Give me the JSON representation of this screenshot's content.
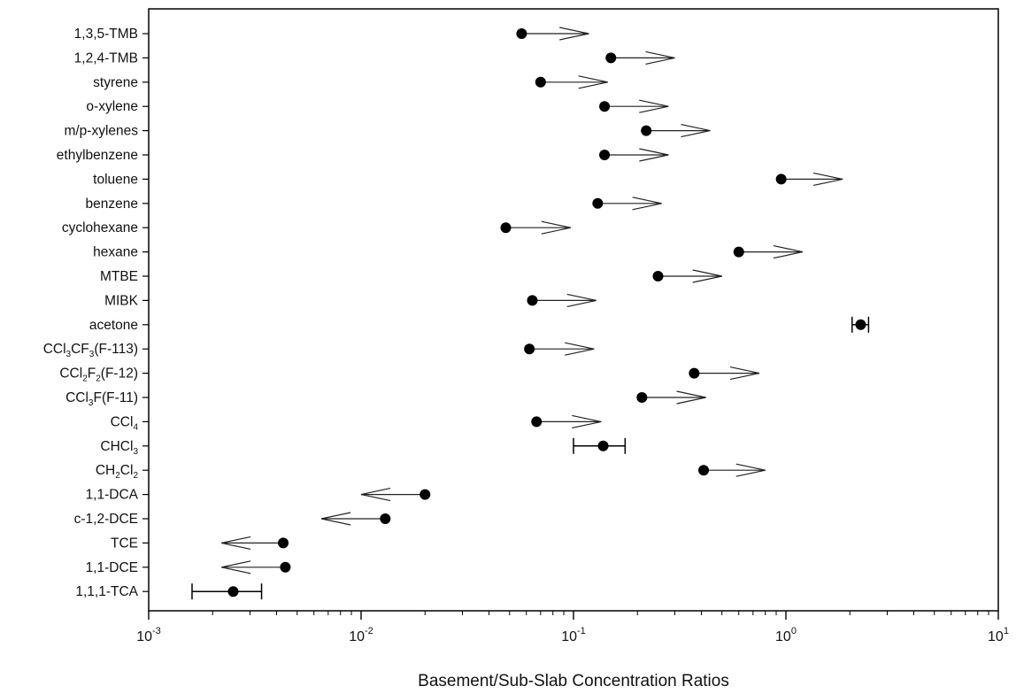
{
  "chart_data": {
    "type": "scatter",
    "title": "",
    "xlabel": "Basement/Sub-Slab Concentration Ratios",
    "ylabel": "",
    "x_scale": "log",
    "xlim": [
      0.001,
      10
    ],
    "grid": false,
    "legend": "none",
    "x_ticks": [
      {
        "value": 0.001,
        "base": "10",
        "exp": "-3"
      },
      {
        "value": 0.01,
        "base": "10",
        "exp": "-2"
      },
      {
        "value": 0.1,
        "base": "10",
        "exp": "-1"
      },
      {
        "value": 1,
        "base": "10",
        "exp": "0"
      },
      {
        "value": 10,
        "base": "10",
        "exp": "1"
      }
    ],
    "rows": [
      {
        "label": [
          {
            "t": "1,3,5-TMB"
          }
        ],
        "value": 0.057,
        "kind": "arrow_right",
        "end": 0.118
      },
      {
        "label": [
          {
            "t": "1,2,4-TMB"
          }
        ],
        "value": 0.15,
        "kind": "arrow_right",
        "end": 0.3
      },
      {
        "label": [
          {
            "t": "styrene"
          }
        ],
        "value": 0.07,
        "kind": "arrow_right",
        "end": 0.145
      },
      {
        "label": [
          {
            "t": "o-xylene"
          }
        ],
        "value": 0.14,
        "kind": "arrow_right",
        "end": 0.28
      },
      {
        "label": [
          {
            "t": "m/p-xylenes"
          }
        ],
        "value": 0.22,
        "kind": "arrow_right",
        "end": 0.44
      },
      {
        "label": [
          {
            "t": "ethylbenzene"
          }
        ],
        "value": 0.14,
        "kind": "arrow_right",
        "end": 0.28
      },
      {
        "label": [
          {
            "t": "toluene"
          }
        ],
        "value": 0.95,
        "kind": "arrow_right",
        "end": 1.85
      },
      {
        "label": [
          {
            "t": "benzene"
          }
        ],
        "value": 0.13,
        "kind": "arrow_right",
        "end": 0.26
      },
      {
        "label": [
          {
            "t": "cyclohexane"
          }
        ],
        "value": 0.048,
        "kind": "arrow_right",
        "end": 0.097
      },
      {
        "label": [
          {
            "t": "hexane"
          }
        ],
        "value": 0.6,
        "kind": "arrow_right",
        "end": 1.2
      },
      {
        "label": [
          {
            "t": "MTBE"
          }
        ],
        "value": 0.25,
        "kind": "arrow_right",
        "end": 0.5
      },
      {
        "label": [
          {
            "t": "MIBK"
          }
        ],
        "value": 0.064,
        "kind": "arrow_right",
        "end": 0.128
      },
      {
        "label": [
          {
            "t": "acetone"
          }
        ],
        "value": 2.25,
        "kind": "range",
        "lo": 2.05,
        "hi": 2.45
      },
      {
        "label": [
          {
            "t": "CCl"
          },
          {
            "t": "3",
            "sub": true
          },
          {
            "t": "CF"
          },
          {
            "t": "3",
            "sub": true
          },
          {
            "t": "(F-113)"
          }
        ],
        "value": 0.062,
        "kind": "arrow_right",
        "end": 0.125
      },
      {
        "label": [
          {
            "t": "CCl"
          },
          {
            "t": "2",
            "sub": true
          },
          {
            "t": "F"
          },
          {
            "t": "2",
            "sub": true
          },
          {
            "t": "(F-12)"
          }
        ],
        "value": 0.37,
        "kind": "arrow_right",
        "end": 0.75
      },
      {
        "label": [
          {
            "t": "CCl"
          },
          {
            "t": "3",
            "sub": true
          },
          {
            "t": "F(F-11)"
          }
        ],
        "value": 0.21,
        "kind": "arrow_right",
        "end": 0.42
      },
      {
        "label": [
          {
            "t": "CCl"
          },
          {
            "t": "4",
            "sub": true
          }
        ],
        "value": 0.067,
        "kind": "arrow_right",
        "end": 0.135
      },
      {
        "label": [
          {
            "t": "CHCl"
          },
          {
            "t": "3",
            "sub": true
          }
        ],
        "value": 0.138,
        "kind": "range",
        "lo": 0.1,
        "hi": 0.175
      },
      {
        "label": [
          {
            "t": "CH"
          },
          {
            "t": "2",
            "sub": true
          },
          {
            "t": "Cl"
          },
          {
            "t": "2",
            "sub": true
          }
        ],
        "value": 0.41,
        "kind": "arrow_right",
        "end": 0.8
      },
      {
        "label": [
          {
            "t": "1,1-DCA"
          }
        ],
        "value": 0.02,
        "kind": "arrow_left",
        "end": 0.01
      },
      {
        "label": [
          {
            "t": "c-1,2-DCE"
          }
        ],
        "value": 0.013,
        "kind": "arrow_left",
        "end": 0.0065
      },
      {
        "label": [
          {
            "t": "TCE"
          }
        ],
        "value": 0.0043,
        "kind": "arrow_left",
        "end": 0.0022
      },
      {
        "label": [
          {
            "t": "1,1-DCE"
          }
        ],
        "value": 0.0044,
        "kind": "arrow_left",
        "end": 0.0022
      },
      {
        "label": [
          {
            "t": "1,1,1-TCA"
          }
        ],
        "value": 0.0025,
        "kind": "range",
        "lo": 0.0016,
        "hi": 0.0034
      }
    ]
  }
}
